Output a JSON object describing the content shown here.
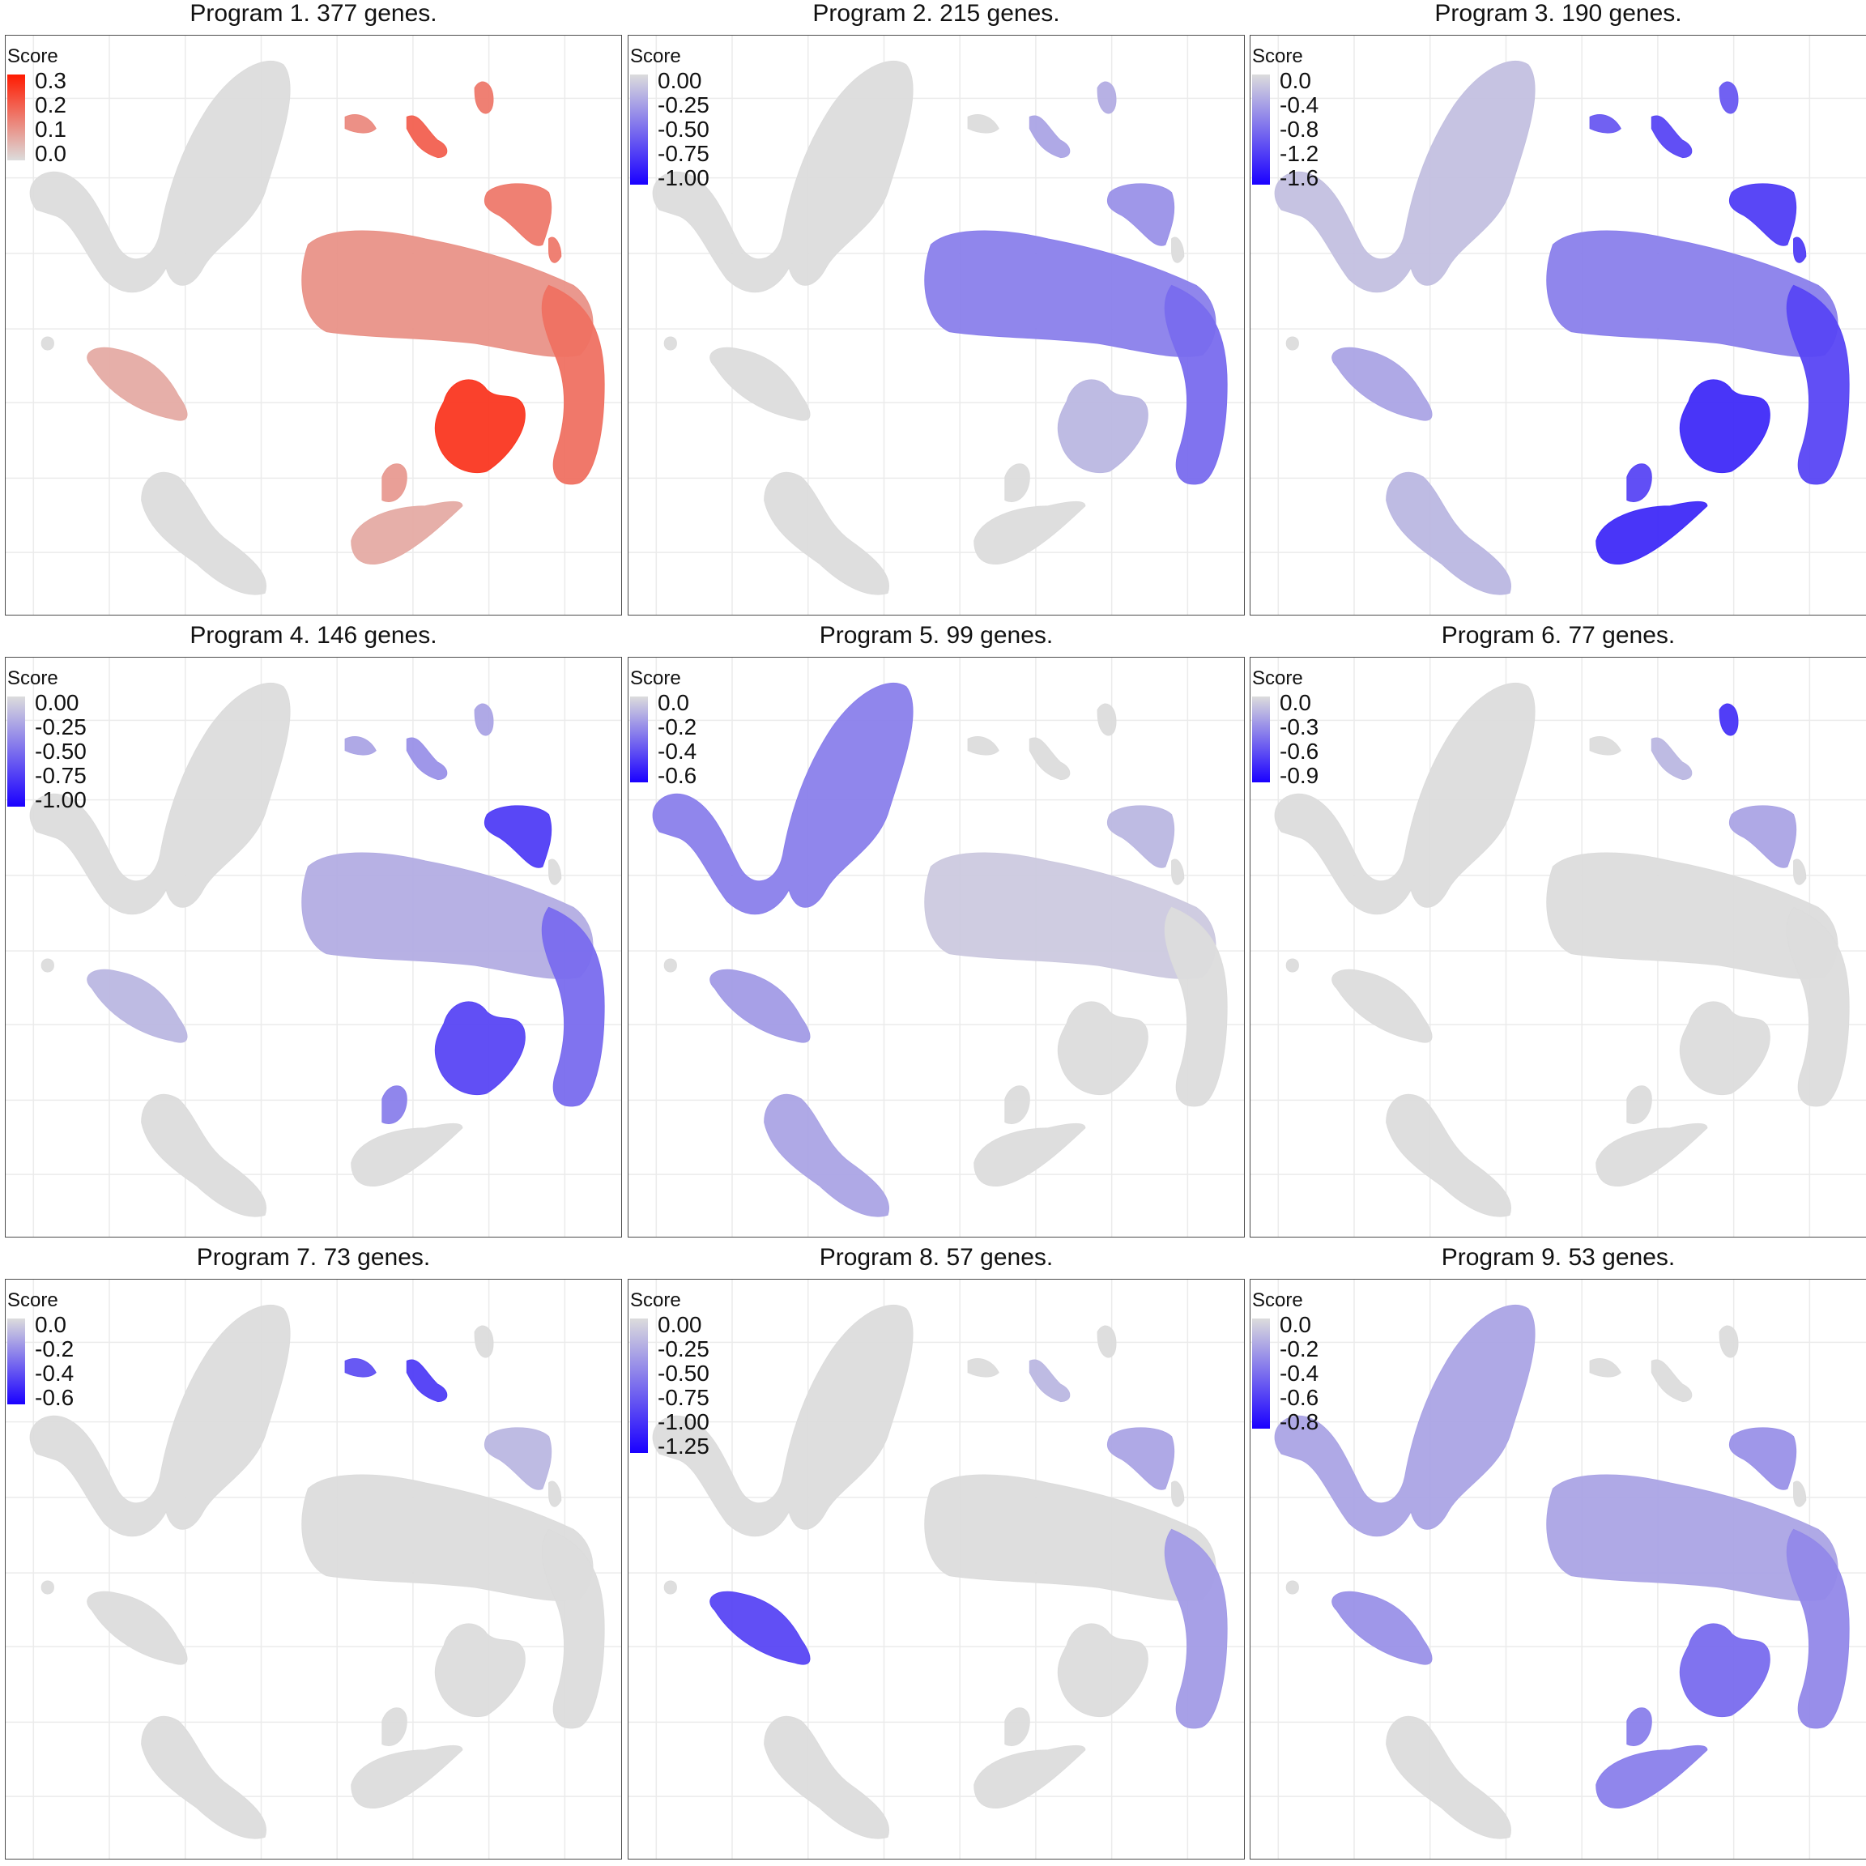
{
  "chart_data": [
    {
      "type": "scatter",
      "title": "Program 1. 377 genes.",
      "legend": {
        "title": "Score",
        "low_color": "#dcdcdc",
        "high_color": "#ff1a00",
        "ticks": [
          "0.3",
          "0.2",
          "0.1",
          "0.0"
        ]
      },
      "highlights": [
        {
          "region": "trunk",
          "level": 0.45
        },
        {
          "region": "arm",
          "level": 0.65
        },
        {
          "region": "blob",
          "level": 1.0
        },
        {
          "region": "topright",
          "level": 0.6
        },
        {
          "region": "knob",
          "level": 0.6
        },
        {
          "region": "islet2",
          "level": 0.75
        },
        {
          "region": "islet1",
          "level": 0.5
        },
        {
          "region": "islet3",
          "level": 0.6
        },
        {
          "region": "lower",
          "level": 0.3
        },
        {
          "region": "lowerknob",
          "level": 0.4
        },
        {
          "region": "left2",
          "level": 0.3
        }
      ]
    },
    {
      "type": "scatter",
      "title": "Program 2. 215 genes.",
      "legend": {
        "title": "Score",
        "low_color": "#dcdcdc",
        "high_color": "#1a00ff",
        "ticks": [
          "0.00",
          "-0.25",
          "-0.50",
          "-0.75",
          "-1.00"
        ]
      },
      "highlights": [
        {
          "region": "trunk",
          "level": 0.5
        },
        {
          "region": "arm",
          "level": 0.6
        },
        {
          "region": "topright",
          "level": 0.4
        },
        {
          "region": "islet2",
          "level": 0.3
        },
        {
          "region": "islet3",
          "level": 0.25
        },
        {
          "region": "blob",
          "level": 0.2
        }
      ]
    },
    {
      "type": "scatter",
      "title": "Program 3. 190 genes.",
      "legend": {
        "title": "Score",
        "low_color": "#dcdcdc",
        "high_color": "#1a00ff",
        "ticks": [
          "0.0",
          "-0.4",
          "-0.8",
          "-1.2",
          "-1.6"
        ]
      },
      "highlights": [
        {
          "region": "blob",
          "level": 0.95
        },
        {
          "region": "lower",
          "level": 0.95
        },
        {
          "region": "lowerknob",
          "level": 0.8
        },
        {
          "region": "topright",
          "level": 0.85
        },
        {
          "region": "knob",
          "level": 0.85
        },
        {
          "region": "arm",
          "level": 0.8
        },
        {
          "region": "trunk",
          "level": 0.5
        },
        {
          "region": "islet1",
          "level": 0.7
        },
        {
          "region": "islet2",
          "level": 0.8
        },
        {
          "region": "islet3",
          "level": 0.7
        },
        {
          "region": "left2",
          "level": 0.3
        },
        {
          "region": "left3",
          "level": 0.2
        },
        {
          "region": "left1",
          "level": 0.15
        }
      ]
    },
    {
      "type": "scatter",
      "title": "Program 4. 146 genes.",
      "legend": {
        "title": "Score",
        "low_color": "#dcdcdc",
        "high_color": "#1a00ff",
        "ticks": [
          "0.00",
          "-0.25",
          "-0.50",
          "-0.75",
          "-1.00"
        ]
      },
      "highlights": [
        {
          "region": "topright",
          "level": 0.85
        },
        {
          "region": "blob",
          "level": 0.8
        },
        {
          "region": "arm",
          "level": 0.6
        },
        {
          "region": "trunk",
          "level": 0.25
        },
        {
          "region": "islet2",
          "level": 0.4
        },
        {
          "region": "islet1",
          "level": 0.3
        },
        {
          "region": "islet3",
          "level": 0.3
        },
        {
          "region": "lowerknob",
          "level": 0.5
        },
        {
          "region": "left2",
          "level": 0.2
        }
      ]
    },
    {
      "type": "scatter",
      "title": "Program 5. 99 genes.",
      "legend": {
        "title": "Score",
        "low_color": "#dcdcdc",
        "high_color": "#1a00ff",
        "ticks": [
          "0.0",
          "-0.2",
          "-0.4",
          "-0.6"
        ]
      },
      "highlights": [
        {
          "region": "left1",
          "level": 0.5
        },
        {
          "region": "left2",
          "level": 0.35
        },
        {
          "region": "left3",
          "level": 0.3
        },
        {
          "region": "trunk",
          "level": 0.1
        },
        {
          "region": "topright",
          "level": 0.2
        }
      ]
    },
    {
      "type": "scatter",
      "title": "Program 6. 77 genes.",
      "legend": {
        "title": "Score",
        "low_color": "#dcdcdc",
        "high_color": "#1a00ff",
        "ticks": [
          "0.0",
          "-0.3",
          "-0.6",
          "-0.9"
        ]
      },
      "highlights": [
        {
          "region": "islet3",
          "level": 0.9
        },
        {
          "region": "topright",
          "level": 0.3
        },
        {
          "region": "islet2",
          "level": 0.2
        }
      ]
    },
    {
      "type": "scatter",
      "title": "Program 7. 73 genes.",
      "legend": {
        "title": "Score",
        "low_color": "#dcdcdc",
        "high_color": "#1a00ff",
        "ticks": [
          "0.0",
          "-0.2",
          "-0.4",
          "-0.6"
        ]
      },
      "highlights": [
        {
          "region": "islet2",
          "level": 0.85
        },
        {
          "region": "islet1",
          "level": 0.75
        },
        {
          "region": "topright",
          "level": 0.2
        }
      ]
    },
    {
      "type": "scatter",
      "title": "Program 8. 57 genes.",
      "legend": {
        "title": "Score",
        "low_color": "#dcdcdc",
        "high_color": "#1a00ff",
        "ticks": [
          "0.00",
          "-0.25",
          "-0.50",
          "-0.75",
          "-1.00",
          "-1.25"
        ]
      },
      "highlights": [
        {
          "region": "left2",
          "level": 0.8
        },
        {
          "region": "arm",
          "level": 0.35
        },
        {
          "region": "topright",
          "level": 0.3
        },
        {
          "region": "islet2",
          "level": 0.2
        }
      ]
    },
    {
      "type": "scatter",
      "title": "Program 9. 53 genes.",
      "legend": {
        "title": "Score",
        "low_color": "#dcdcdc",
        "high_color": "#1a00ff",
        "ticks": [
          "0.0",
          "-0.2",
          "-0.4",
          "-0.6",
          "-0.8"
        ]
      },
      "highlights": [
        {
          "region": "blob",
          "level": 0.6
        },
        {
          "region": "lower",
          "level": 0.5
        },
        {
          "region": "lowerknob",
          "level": 0.5
        },
        {
          "region": "arm",
          "level": 0.45
        },
        {
          "region": "trunk",
          "level": 0.3
        },
        {
          "region": "topright",
          "level": 0.4
        },
        {
          "region": "left2",
          "level": 0.4
        },
        {
          "region": "left1",
          "level": 0.3
        }
      ]
    }
  ]
}
